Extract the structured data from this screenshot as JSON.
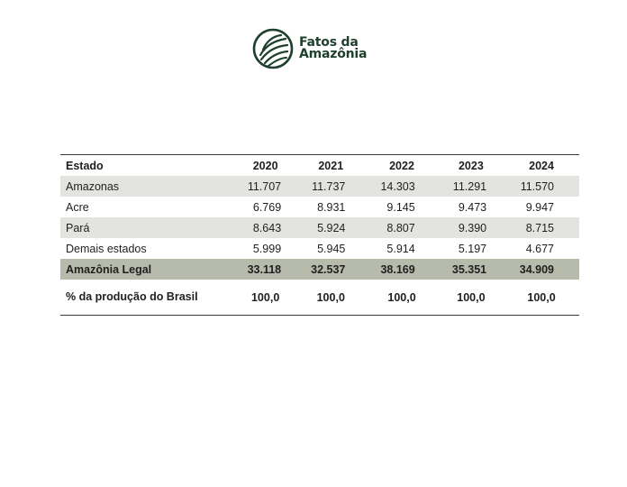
{
  "brand": {
    "name_line1": "Fatos da",
    "name_line2": "Amazônia",
    "icon": "leaf-wave-logo-icon",
    "color": "#1e3f2e"
  },
  "table": {
    "headers": [
      "Estado",
      "2020",
      "2021",
      "2022",
      "2023",
      "2024"
    ],
    "rows": [
      {
        "label": "Amazonas",
        "values": [
          "11.707",
          "11.737",
          "14.303",
          "11.291",
          "11.570"
        ]
      },
      {
        "label": "Acre",
        "values": [
          "6.769",
          "8.931",
          "9.145",
          "9.473",
          "9.947"
        ]
      },
      {
        "label": "Pará",
        "values": [
          "8.643",
          "5.924",
          "8.807",
          "9.390",
          "8.715"
        ]
      },
      {
        "label": "Demais estados",
        "values": [
          "5.999",
          "5.945",
          "5.914",
          "5.197",
          "4.677"
        ]
      },
      {
        "label": "Amazônia Legal",
        "values": [
          "33.118",
          "32.537",
          "38.169",
          "35.351",
          "34.909"
        ]
      },
      {
        "label": "% da produção do Brasil",
        "values": [
          "100,0",
          "100,0",
          "100,0",
          "100,0",
          "100,0"
        ]
      }
    ]
  },
  "colors": {
    "shaded_row": "#e3e3df",
    "total_row": "#b7bbab"
  }
}
